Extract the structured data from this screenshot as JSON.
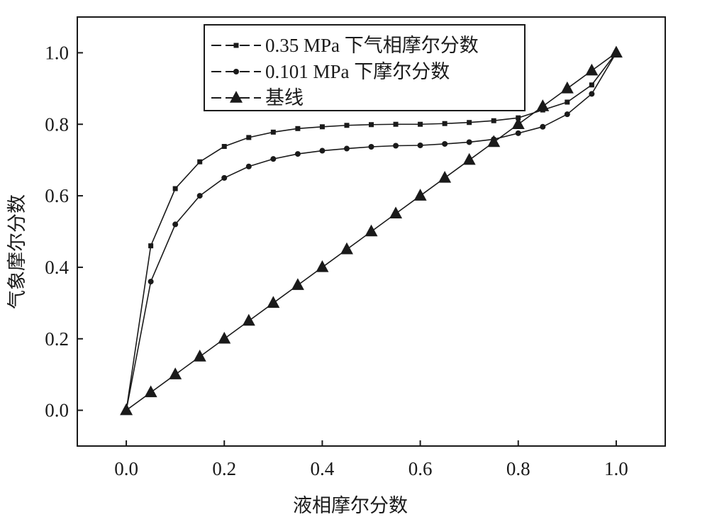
{
  "chart_data": {
    "type": "line",
    "title": "",
    "xlabel": "液相摩尔分数",
    "ylabel": "气象摩尔分数",
    "xlim": [
      -0.1,
      1.1
    ],
    "ylim": [
      -0.1,
      1.1
    ],
    "xticks": [
      "0.0",
      "0.2",
      "0.4",
      "0.6",
      "0.8",
      "1.0"
    ],
    "yticks": [
      "0.0",
      "0.2",
      "0.4",
      "0.6",
      "0.8",
      "1.0"
    ],
    "legend_position": "top-center",
    "grid": false,
    "series": [
      {
        "name": "0.35 MPa 下气相摩尔分数",
        "marker": "square",
        "x": [
          0,
          0.05,
          0.1,
          0.15,
          0.2,
          0.25,
          0.3,
          0.35,
          0.4,
          0.45,
          0.5,
          0.55,
          0.6,
          0.65,
          0.7,
          0.75,
          0.8,
          0.85,
          0.9,
          0.95,
          1.0
        ],
        "y": [
          0,
          0.46,
          0.62,
          0.695,
          0.738,
          0.763,
          0.778,
          0.788,
          0.793,
          0.797,
          0.799,
          0.8,
          0.8,
          0.802,
          0.805,
          0.81,
          0.818,
          0.84,
          0.862,
          0.91,
          1.0
        ]
      },
      {
        "name": "0.101 MPa 下摩尔分数",
        "marker": "circle",
        "x": [
          0,
          0.05,
          0.1,
          0.15,
          0.2,
          0.25,
          0.3,
          0.35,
          0.4,
          0.45,
          0.5,
          0.55,
          0.6,
          0.65,
          0.7,
          0.75,
          0.8,
          0.85,
          0.9,
          0.95,
          1.0
        ],
        "y": [
          0,
          0.36,
          0.52,
          0.6,
          0.65,
          0.682,
          0.703,
          0.717,
          0.726,
          0.732,
          0.737,
          0.74,
          0.741,
          0.745,
          0.75,
          0.758,
          0.775,
          0.793,
          0.828,
          0.885,
          1.0
        ]
      },
      {
        "name": "基线",
        "marker": "triangle",
        "x": [
          0,
          0.05,
          0.1,
          0.15,
          0.2,
          0.25,
          0.3,
          0.35,
          0.4,
          0.45,
          0.5,
          0.55,
          0.6,
          0.65,
          0.7,
          0.75,
          0.8,
          0.85,
          0.9,
          0.95,
          1.0
        ],
        "y": [
          0,
          0.05,
          0.1,
          0.15,
          0.2,
          0.25,
          0.3,
          0.35,
          0.4,
          0.45,
          0.5,
          0.55,
          0.6,
          0.65,
          0.7,
          0.75,
          0.8,
          0.85,
          0.9,
          0.95,
          1.0
        ]
      }
    ]
  },
  "colors": {
    "ink": "#1a1a1a",
    "background": "#ffffff"
  }
}
